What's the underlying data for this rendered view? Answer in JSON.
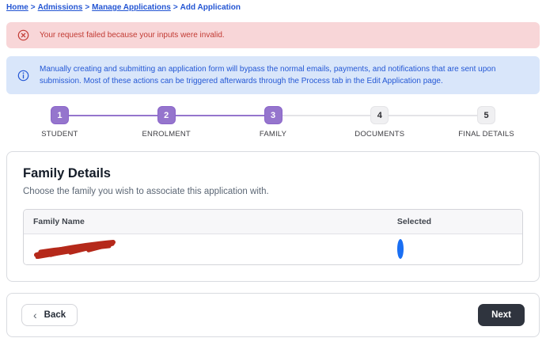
{
  "breadcrumb": {
    "separator": ">",
    "items": [
      {
        "label": "Home",
        "current": false
      },
      {
        "label": "Admissions",
        "current": false
      },
      {
        "label": "Manage Applications",
        "current": false
      },
      {
        "label": "Add Application",
        "current": true
      }
    ]
  },
  "alerts": {
    "error": {
      "icon": "circle-x-icon",
      "text": "Your request failed because your inputs were invalid.",
      "bg": "#f8d6d8",
      "color": "#c23b34"
    },
    "info": {
      "icon": "circle-info-icon",
      "text": "Manually creating and submitting an application form will bypass the normal emails, payments, and notifications that are sent upon submission. Most of these actions can be triggered afterwards through the Process tab in the Edit Application page.",
      "bg": "#d9e6fa",
      "color": "#2458d5"
    }
  },
  "stepper": {
    "active_color": "#9575cd",
    "inactive_color": "#f0f0f2",
    "steps": [
      {
        "number": "1",
        "label": "STUDENT",
        "state": "complete"
      },
      {
        "number": "2",
        "label": "ENROLMENT",
        "state": "complete"
      },
      {
        "number": "3",
        "label": "FAMILY",
        "state": "active"
      },
      {
        "number": "4",
        "label": "DOCUMENTS",
        "state": "upcoming"
      },
      {
        "number": "5",
        "label": "FINAL DETAILS",
        "state": "upcoming"
      }
    ]
  },
  "family_section": {
    "title": "Family Details",
    "subtitle": "Choose the family you wish to associate this application with.",
    "table": {
      "columns": [
        "Family Name",
        "Selected"
      ],
      "rows": [
        {
          "family_name_redacted": true,
          "selected": true
        }
      ]
    },
    "redaction_color": "#b5291a",
    "radio_color": "#1a6ff3"
  },
  "footer": {
    "back_label": "Back",
    "next_label": "Next",
    "next_bg": "#2f343e"
  },
  "link_color": "#2355d3"
}
